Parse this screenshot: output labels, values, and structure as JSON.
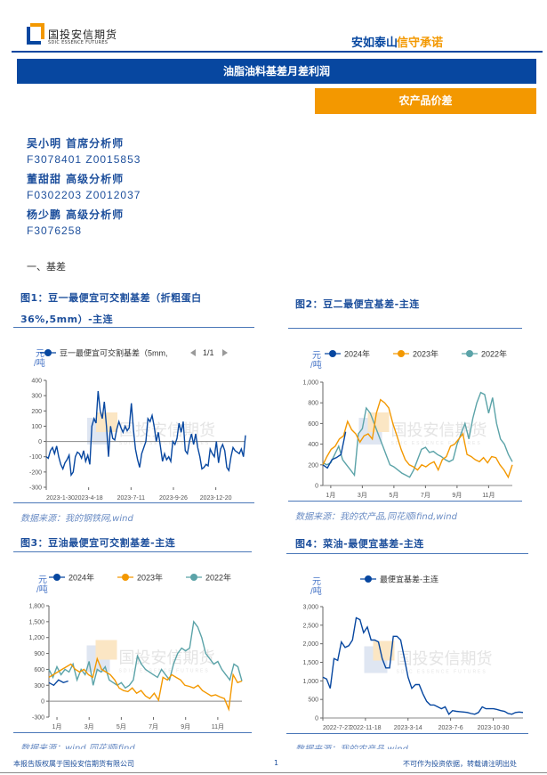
{
  "header": {
    "logo_cn": "国投安信期货",
    "logo_en": "SDIC ESSENCE FUTURES",
    "slogan_part1": "安如泰山",
    "slogan_part2": "信守承诺",
    "colors": {
      "brand_blue": "#0747a0",
      "brand_orange": "#f39800"
    }
  },
  "report_title": "油脂油料基差月差利润",
  "category": "农产品价差",
  "analysts": [
    {
      "name": "吴小明 首席分析师",
      "ids": "F3078401  Z0015853"
    },
    {
      "name": "董甜甜 高级分析师",
      "ids": "F0302203  Z0012037"
    },
    {
      "name": "杨少鹏 高级分析师",
      "ids": "F3076258"
    }
  ],
  "section_title": "一、基差",
  "watermark": {
    "cn": "国投安信期货",
    "en": "SDIC ESSENCE FUTURES"
  },
  "figures": [
    {
      "title_line1": "图1：豆一最便宜可交割基差（折粗蛋白",
      "title_line2": "36%,5mm）-主连",
      "source": "数据来源：我的钢铁网,wind",
      "pager": "1/1"
    },
    {
      "title_line1": "图2：豆二最便宜基差-主连",
      "source": "数据来源：我的农产品,同花顺ifind,wind"
    },
    {
      "title_line1": "图3：豆油最便宜可交割基差-主连",
      "source": "数据来源：wind,同花顺ifind"
    },
    {
      "title_line1": "图4：菜油-最便宜基差-主连",
      "source": "数据来源：我的农产品,wind"
    }
  ],
  "footer": {
    "copyright": "本报告版权属于国投安信期货有限公司",
    "page": "1",
    "disclaimer": "不可作为投资依据，转载请注明出处"
  },
  "chart_data": [
    {
      "type": "line",
      "unit": "元/吨",
      "ylim": [
        -300,
        400
      ],
      "yticks": [
        "400",
        "300",
        "200",
        "100",
        "0",
        "-100",
        "-200",
        "-300"
      ],
      "ytick_values": [
        400,
        300,
        200,
        100,
        0,
        -100,
        -200,
        -300
      ],
      "xticks": [
        "2023-1-30",
        "2023-4-18",
        "2023-7-11",
        "2023-9-26",
        "2023-12-20"
      ],
      "series": [
        {
          "name": "豆一最便宜可交割基差（5mm,",
          "color": "#0747a0",
          "values": [
            -100,
            -110,
            -60,
            -40,
            -80,
            -30,
            -100,
            -150,
            -180,
            -140,
            -120,
            -90,
            -220,
            -200,
            -100,
            -70,
            -80,
            -110,
            -60,
            -130,
            -90,
            -150,
            100,
            150,
            120,
            330,
            200,
            150,
            260,
            100,
            -100,
            100,
            20,
            10,
            80,
            130,
            90,
            60,
            100,
            70,
            90,
            250,
            80,
            -50,
            -120,
            -170,
            -80,
            -40,
            0,
            150,
            130,
            170,
            100,
            0,
            60,
            -30,
            -130,
            -80,
            -120,
            -100,
            -130,
            0,
            -20,
            20,
            120,
            60,
            130,
            -60,
            -80,
            0,
            50,
            -20,
            50,
            -40,
            -100,
            -180,
            -170,
            -150,
            -160,
            -50,
            -80,
            -100,
            0,
            -140,
            -50,
            -20,
            -60,
            -170,
            -190,
            -100,
            -40,
            -60,
            -70,
            -80,
            -50,
            -100,
            40
          ]
        }
      ]
    },
    {
      "type": "line",
      "unit": "元/吨",
      "ylim": [
        0,
        1000
      ],
      "yticks": [
        "1,000",
        "800",
        "600",
        "400",
        "200",
        "0"
      ],
      "ytick_values": [
        1000,
        800,
        600,
        400,
        200,
        0
      ],
      "xticks": [
        "1月",
        "3月",
        "5月",
        "7月",
        "9月",
        "11月"
      ],
      "series": [
        {
          "name": "2024年",
          "color": "#0747a0",
          "span": 0.12,
          "values": [
            200,
            170,
            250,
            270,
            300,
            520
          ]
        },
        {
          "name": "2023年",
          "color": "#f39800",
          "span": 1,
          "values": [
            200,
            280,
            350,
            380,
            450,
            480,
            620,
            540,
            500,
            420,
            480,
            500,
            450,
            700,
            830,
            800,
            750,
            600,
            480,
            350,
            250,
            200,
            180,
            150,
            200,
            180,
            210,
            230,
            150,
            250,
            280,
            380,
            400,
            450,
            500,
            300,
            280,
            250,
            230,
            270,
            220,
            280,
            270,
            200,
            150,
            80,
            200
          ]
        },
        {
          "name": "2022年",
          "color": "#5ba3a8",
          "span": 1,
          "values": [
            220,
            200,
            220,
            300,
            380,
            250,
            200,
            150,
            100,
            500,
            550,
            750,
            700,
            600,
            500,
            400,
            300,
            200,
            180,
            150,
            120,
            100,
            80,
            150,
            250,
            350,
            370,
            320,
            330,
            300,
            280,
            250,
            230,
            250,
            400,
            500,
            600,
            450,
            650,
            800,
            900,
            880,
            700,
            850,
            600,
            450,
            400,
            300,
            230
          ]
        }
      ]
    },
    {
      "type": "line",
      "unit": "元/吨",
      "ylim": [
        -300,
        1800
      ],
      "yticks": [
        "1,800",
        "1,500",
        "1,200",
        "900",
        "600",
        "300",
        "0",
        "-300"
      ],
      "ytick_values": [
        1800,
        1500,
        1200,
        900,
        600,
        300,
        0,
        -300
      ],
      "xticks": [
        "1月",
        "3月",
        "5月",
        "7月",
        "9月",
        "11月"
      ],
      "series": [
        {
          "name": "2024年",
          "color": "#0747a0",
          "span": 0.1,
          "values": [
            350,
            300,
            400,
            350,
            380
          ]
        },
        {
          "name": "2023年",
          "color": "#f39800",
          "span": 1,
          "values": [
            450,
            500,
            550,
            600,
            650,
            700,
            600,
            550,
            600,
            500,
            450,
            800,
            600,
            550,
            500,
            400,
            250,
            200,
            180,
            250,
            150,
            200,
            100,
            50,
            150,
            20,
            450,
            400,
            500,
            450,
            400,
            300,
            280,
            250,
            300,
            200,
            150,
            100,
            120,
            80,
            50,
            -150,
            500,
            350,
            380
          ]
        },
        {
          "name": "2022年",
          "color": "#5ba3a8",
          "span": 1,
          "values": [
            600,
            450,
            650,
            500,
            600,
            550,
            700,
            400,
            600,
            500,
            750,
            300,
            600,
            550,
            650,
            400,
            350,
            300,
            350,
            250,
            300,
            400,
            850,
            700,
            600,
            550,
            500,
            450,
            600,
            500,
            400,
            700,
            900,
            1000,
            950,
            1000,
            1500,
            1400,
            1200,
            900,
            800,
            700,
            750,
            600,
            500,
            400,
            700,
            650,
            380
          ]
        }
      ]
    },
    {
      "type": "line",
      "unit": "元/吨",
      "ylim": [
        0,
        3000
      ],
      "yticks": [
        "3,000",
        "2,500",
        "2,000",
        "1,500",
        "1,000",
        "500",
        "0"
      ],
      "ytick_values": [
        3000,
        2500,
        2000,
        1500,
        1000,
        500,
        0
      ],
      "xticks": [
        "2022-7-27",
        "2022-11-18",
        "2023-3-14",
        "2023-7-6",
        "2023-10-30"
      ],
      "series": [
        {
          "name": "最便宜基差-主连",
          "color": "#0747a0",
          "values": [
            1100,
            1050,
            800,
            1600,
            1550,
            2050,
            1900,
            1950,
            2100,
            2700,
            2650,
            2300,
            2450,
            2100,
            2100,
            2050,
            1600,
            1350,
            1350,
            2200,
            2200,
            2100,
            1600,
            1100,
            800,
            900,
            900,
            650,
            450,
            350,
            350,
            300,
            250,
            300,
            100,
            200,
            180,
            170,
            160,
            150,
            120,
            100,
            150,
            300,
            250,
            250,
            250,
            230,
            200,
            180,
            120,
            100,
            150,
            160,
            150
          ]
        }
      ]
    }
  ]
}
